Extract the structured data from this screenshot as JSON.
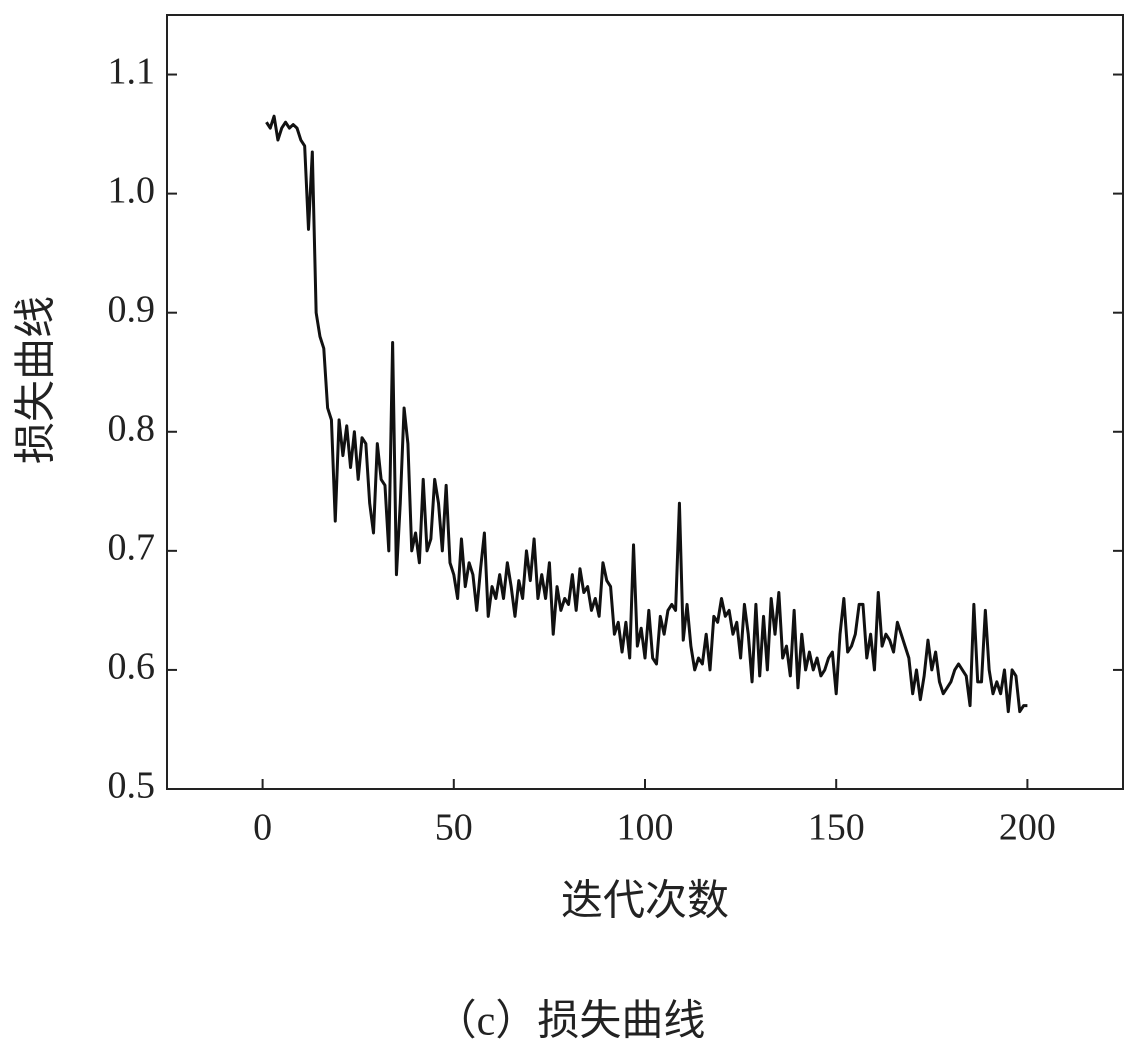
{
  "chart_data": {
    "type": "line",
    "xlabel": "迭代次数",
    "ylabel": "损失曲线",
    "caption": "（c）损失曲线",
    "color": "#111111",
    "xlim": [
      -25,
      225
    ],
    "xticks": [
      0,
      50,
      100,
      150,
      200
    ],
    "ylim": [
      0.5,
      1.15
    ],
    "yticks": [
      0.5,
      0.6,
      0.7,
      0.8,
      0.9,
      {
        "value": 1,
        "label": "1.0"
      },
      1.1
    ],
    "x": [
      1,
      2,
      3,
      4,
      5,
      6,
      7,
      8,
      9,
      10,
      11,
      12,
      13,
      14,
      15,
      16,
      17,
      18,
      19,
      20,
      21,
      22,
      23,
      24,
      25,
      26,
      27,
      28,
      29,
      30,
      31,
      32,
      33,
      34,
      35,
      36,
      37,
      38,
      39,
      40,
      41,
      42,
      43,
      44,
      45,
      46,
      47,
      48,
      49,
      50,
      51,
      52,
      53,
      54,
      55,
      56,
      57,
      58,
      59,
      60,
      61,
      62,
      63,
      64,
      65,
      66,
      67,
      68,
      69,
      70,
      71,
      72,
      73,
      74,
      75,
      76,
      77,
      78,
      79,
      80,
      81,
      82,
      83,
      84,
      85,
      86,
      87,
      88,
      89,
      90,
      91,
      92,
      93,
      94,
      95,
      96,
      97,
      98,
      99,
      100,
      101,
      102,
      103,
      104,
      105,
      106,
      107,
      108,
      109,
      110,
      111,
      112,
      113,
      114,
      115,
      116,
      117,
      118,
      119,
      120,
      121,
      122,
      123,
      124,
      125,
      126,
      127,
      128,
      129,
      130,
      131,
      132,
      133,
      134,
      135,
      136,
      137,
      138,
      139,
      140,
      141,
      142,
      143,
      144,
      145,
      146,
      147,
      148,
      149,
      150,
      151,
      152,
      153,
      154,
      155,
      156,
      157,
      158,
      159,
      160,
      161,
      162,
      163,
      164,
      165,
      166,
      167,
      168,
      169,
      170,
      171,
      172,
      173,
      174,
      175,
      176,
      177,
      178,
      179,
      180,
      181,
      182,
      183,
      184,
      185,
      186,
      187,
      188,
      189,
      190,
      191,
      192,
      193,
      194,
      195,
      196,
      197,
      198,
      199,
      200
    ],
    "values": [
      1.06,
      1.055,
      1.065,
      1.045,
      1.055,
      1.06,
      1.055,
      1.058,
      1.055,
      1.045,
      1.04,
      0.97,
      1.035,
      0.9,
      0.88,
      0.87,
      0.82,
      0.81,
      0.725,
      0.81,
      0.78,
      0.805,
      0.77,
      0.8,
      0.76,
      0.795,
      0.79,
      0.74,
      0.715,
      0.79,
      0.76,
      0.755,
      0.7,
      0.875,
      0.68,
      0.74,
      0.82,
      0.79,
      0.7,
      0.715,
      0.69,
      0.76,
      0.7,
      0.71,
      0.76,
      0.74,
      0.7,
      0.755,
      0.69,
      0.68,
      0.66,
      0.71,
      0.67,
      0.69,
      0.68,
      0.65,
      0.685,
      0.715,
      0.645,
      0.67,
      0.66,
      0.68,
      0.66,
      0.69,
      0.67,
      0.645,
      0.675,
      0.66,
      0.7,
      0.675,
      0.71,
      0.66,
      0.68,
      0.66,
      0.69,
      0.63,
      0.67,
      0.65,
      0.66,
      0.655,
      0.68,
      0.65,
      0.685,
      0.665,
      0.67,
      0.65,
      0.66,
      0.645,
      0.69,
      0.675,
      0.67,
      0.63,
      0.64,
      0.615,
      0.64,
      0.61,
      0.705,
      0.62,
      0.635,
      0.61,
      0.65,
      0.61,
      0.605,
      0.645,
      0.63,
      0.65,
      0.655,
      0.65,
      0.74,
      0.625,
      0.655,
      0.62,
      0.6,
      0.61,
      0.605,
      0.63,
      0.6,
      0.645,
      0.64,
      0.66,
      0.645,
      0.65,
      0.63,
      0.64,
      0.61,
      0.655,
      0.63,
      0.59,
      0.655,
      0.595,
      0.645,
      0.6,
      0.66,
      0.63,
      0.665,
      0.61,
      0.62,
      0.595,
      0.65,
      0.585,
      0.63,
      0.6,
      0.615,
      0.6,
      0.61,
      0.595,
      0.6,
      0.61,
      0.615,
      0.58,
      0.63,
      0.66,
      0.615,
      0.62,
      0.63,
      0.655,
      0.655,
      0.61,
      0.63,
      0.6,
      0.665,
      0.62,
      0.63,
      0.625,
      0.615,
      0.64,
      0.63,
      0.62,
      0.61,
      0.58,
      0.6,
      0.575,
      0.595,
      0.625,
      0.6,
      0.615,
      0.59,
      0.58,
      0.585,
      0.59,
      0.6,
      0.605,
      0.6,
      0.595,
      0.57,
      0.655,
      0.59,
      0.59,
      0.65,
      0.6,
      0.58,
      0.59,
      0.58,
      0.6,
      0.565,
      0.6,
      0.595,
      0.565,
      0.57,
      0.57
    ]
  }
}
